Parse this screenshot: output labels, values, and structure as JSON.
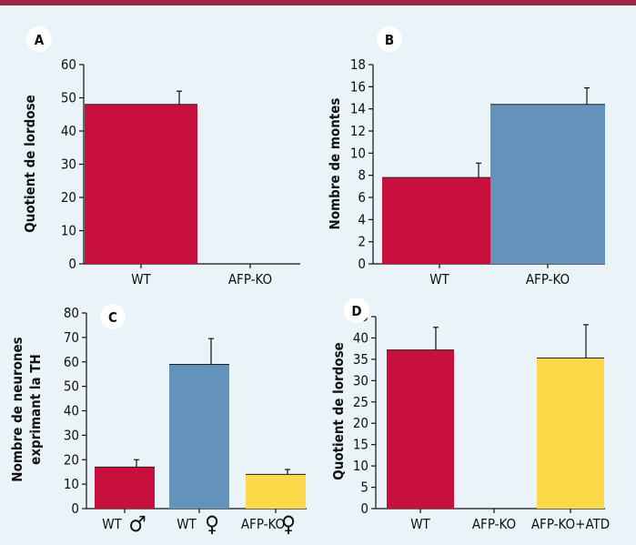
{
  "colors": {
    "red": "#c8103f",
    "blue": "#6392bb",
    "yellow": "#fbd948",
    "background": "#eaf3f7",
    "top_rule": "#9a2b46"
  },
  "panels": [
    {
      "label": "A"
    },
    {
      "label": "B"
    },
    {
      "label": "C"
    },
    {
      "label": "D"
    }
  ],
  "chart_data": [
    {
      "type": "bar",
      "panel": "A",
      "ylabel": "Quotient de lordose",
      "categories": [
        "WT",
        "AFP-KO"
      ],
      "values": [
        48,
        0
      ],
      "errors": [
        4,
        0
      ],
      "colors": [
        "#c8103f",
        "#c8103f"
      ],
      "ylim": [
        0,
        60
      ],
      "yticks": [
        0,
        10,
        20,
        30,
        40,
        50,
        60
      ]
    },
    {
      "type": "bar",
      "panel": "B",
      "ylabel": "Nombre de montes",
      "categories": [
        "WT",
        "AFP-KO"
      ],
      "values": [
        7.8,
        14.4
      ],
      "errors": [
        1.3,
        1.5
      ],
      "colors": [
        "#c8103f",
        "#6392bb"
      ],
      "ylim": [
        0,
        18
      ],
      "yticks": [
        0,
        2,
        4,
        6,
        8,
        10,
        12,
        14,
        16,
        18
      ]
    },
    {
      "type": "bar",
      "panel": "C",
      "ylabel": "Nombre de neurones exprimant la TH",
      "ylabel_lines": [
        "Nombre de neurones",
        "exprimant la TH"
      ],
      "categories": [
        "WT",
        "WT",
        "AFP-KO"
      ],
      "category_symbols": [
        "♂",
        "♀",
        "♀"
      ],
      "values": [
        17,
        59,
        14
      ],
      "errors": [
        3,
        10.5,
        2
      ],
      "colors": [
        "#c8103f",
        "#6392bb",
        "#fbd948"
      ],
      "ylim": [
        0,
        80
      ],
      "yticks": [
        0,
        10,
        20,
        30,
        40,
        50,
        60,
        70,
        80
      ]
    },
    {
      "type": "bar",
      "panel": "D",
      "ylabel": "Quotient de lordose",
      "categories": [
        "WT",
        "AFP-KO",
        "AFP-KO+ATD"
      ],
      "values": [
        37.2,
        0,
        35.3
      ],
      "errors": [
        5.3,
        0,
        7.8
      ],
      "colors": [
        "#c8103f",
        "#c8103f",
        "#fbd948"
      ],
      "ylim": [
        0,
        45
      ],
      "yticks": [
        0,
        5,
        10,
        15,
        20,
        25,
        30,
        35,
        40,
        45
      ]
    }
  ]
}
